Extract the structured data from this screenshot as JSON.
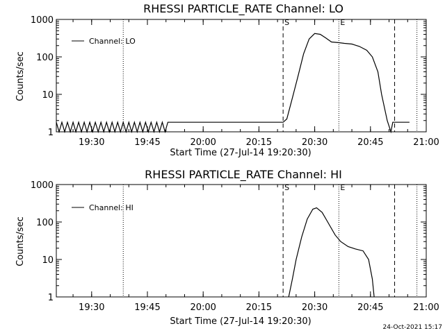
{
  "footer": {
    "timestamp": "24-Oct-2021 15:17"
  },
  "chart_data": [
    {
      "type": "line",
      "title": "RHESSI PARTICLE_RATE Channel: LO",
      "xlabel": "Start Time (27-Jul-14 19:20:30)",
      "ylabel": "Counts/sec",
      "yscale": "log",
      "ylim": [
        1,
        1000
      ],
      "xlim": [
        "19:20:30",
        "21:00:00"
      ],
      "x_tick_labels": [
        "19:30",
        "19:45",
        "20:00",
        "20:15",
        "20:30",
        "20:45",
        "21:00"
      ],
      "y_tick_labels": [
        "1",
        "10",
        "100",
        "1000"
      ],
      "legend": {
        "placement": "top-left",
        "entries": [
          "Channel: LO"
        ]
      },
      "markers": [
        {
          "label": "S",
          "time": "20:21:30",
          "style": "dashed"
        },
        {
          "label": "E",
          "time": "20:36:30",
          "style": "dotted"
        }
      ],
      "extra_lines": [
        {
          "time": "19:38:30",
          "style": "dotted"
        },
        {
          "time": "20:51:30",
          "style": "dashed"
        },
        {
          "time": "20:57:30",
          "style": "dotted"
        }
      ],
      "series": [
        {
          "name": "Channel: LO",
          "baseline_oscillation": {
            "from": "19:20:30",
            "to": "19:50:30",
            "low": 1,
            "high": 1.8
          },
          "points": [
            [
              "19:50:30",
              1.8
            ],
            [
              "20:21:30",
              1.8
            ],
            [
              "20:22:30",
              2.2
            ],
            [
              "20:24:00",
              8
            ],
            [
              "20:25:30",
              30
            ],
            [
              "20:27:00",
              120
            ],
            [
              "20:28:30",
              300
            ],
            [
              "20:30:00",
              420
            ],
            [
              "20:31:30",
              400
            ],
            [
              "20:33:00",
              320
            ],
            [
              "20:34:30",
              250
            ],
            [
              "20:36:30",
              240
            ],
            [
              "20:38:00",
              230
            ],
            [
              "20:40:00",
              220
            ],
            [
              "20:42:00",
              190
            ],
            [
              "20:44:00",
              150
            ],
            [
              "20:45:30",
              100
            ],
            [
              "20:47:00",
              40
            ],
            [
              "20:48:00",
              10
            ],
            [
              "20:49:30",
              2
            ],
            [
              "20:50:30",
              1
            ],
            [
              "20:51:00",
              1.8
            ],
            [
              "20:55:30",
              1.8
            ]
          ]
        }
      ]
    },
    {
      "type": "line",
      "title": "RHESSI PARTICLE_RATE Channel: HI",
      "xlabel": "Start Time (27-Jul-14 19:20:30)",
      "ylabel": "Counts/sec",
      "yscale": "log",
      "ylim": [
        1,
        1000
      ],
      "xlim": [
        "19:20:30",
        "21:00:00"
      ],
      "x_tick_labels": [
        "19:30",
        "19:45",
        "20:00",
        "20:15",
        "20:30",
        "20:45",
        "21:00"
      ],
      "y_tick_labels": [
        "1",
        "10",
        "100",
        "1000"
      ],
      "legend": {
        "placement": "top-left",
        "entries": [
          "Channel: HI"
        ]
      },
      "markers": [
        {
          "label": "S",
          "time": "20:21:30",
          "style": "dashed"
        },
        {
          "label": "E",
          "time": "20:36:30",
          "style": "dotted"
        }
      ],
      "extra_lines": [
        {
          "time": "19:38:30",
          "style": "dotted"
        },
        {
          "time": "20:51:30",
          "style": "dashed"
        },
        {
          "time": "20:57:30",
          "style": "dotted"
        }
      ],
      "series": [
        {
          "name": "Channel: HI",
          "points": [
            [
              "20:23:00",
              1
            ],
            [
              "20:24:00",
              3
            ],
            [
              "20:25:00",
              10
            ],
            [
              "20:26:30",
              40
            ],
            [
              "20:28:00",
              120
            ],
            [
              "20:29:30",
              220
            ],
            [
              "20:30:30",
              240
            ],
            [
              "20:32:00",
              180
            ],
            [
              "20:33:30",
              100
            ],
            [
              "20:35:30",
              45
            ],
            [
              "20:37:00",
              30
            ],
            [
              "20:39:00",
              22
            ],
            [
              "20:41:00",
              19
            ],
            [
              "20:43:00",
              17
            ],
            [
              "20:44:30",
              10
            ],
            [
              "20:45:30",
              3
            ],
            [
              "20:46:00",
              1
            ]
          ]
        }
      ]
    }
  ]
}
